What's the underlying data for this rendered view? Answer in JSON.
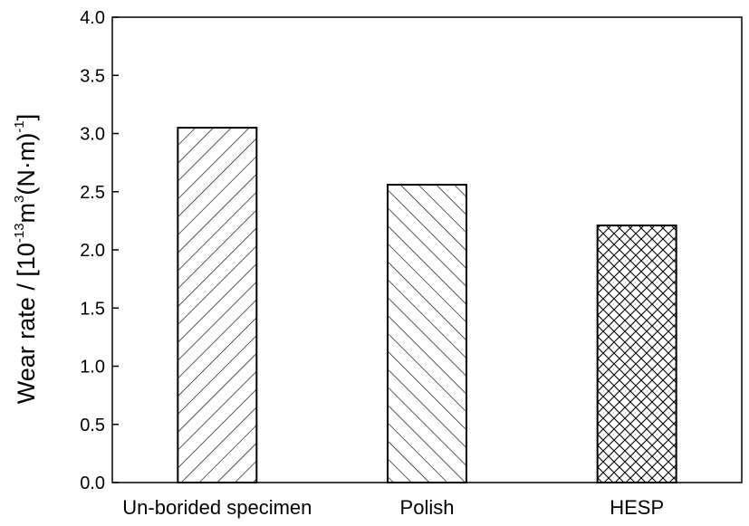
{
  "chart_data": {
    "type": "bar",
    "categories": [
      "Un-borided specimen",
      "Polish",
      "HESP"
    ],
    "values": [
      3.05,
      2.56,
      2.21
    ],
    "ylabel": {
      "prefix": "Wear rate / [10",
      "exp1": "-13",
      "mid1": "m",
      "exp2": "3",
      "mid2": "(N·m)",
      "exp3": "-1",
      "suffix": "]"
    },
    "xlabel": "",
    "ylim": [
      0,
      4
    ],
    "yticks": [
      "0.0",
      "0.5",
      "1.0",
      "1.5",
      "2.0",
      "2.5",
      "3.0",
      "3.5",
      "4.0"
    ],
    "grid": false,
    "fill_patterns": [
      "diagonal-forward",
      "diagonal-backward",
      "crosshatch"
    ],
    "colors": {
      "bar_edge": "#000000",
      "background": "#ffffff"
    }
  }
}
